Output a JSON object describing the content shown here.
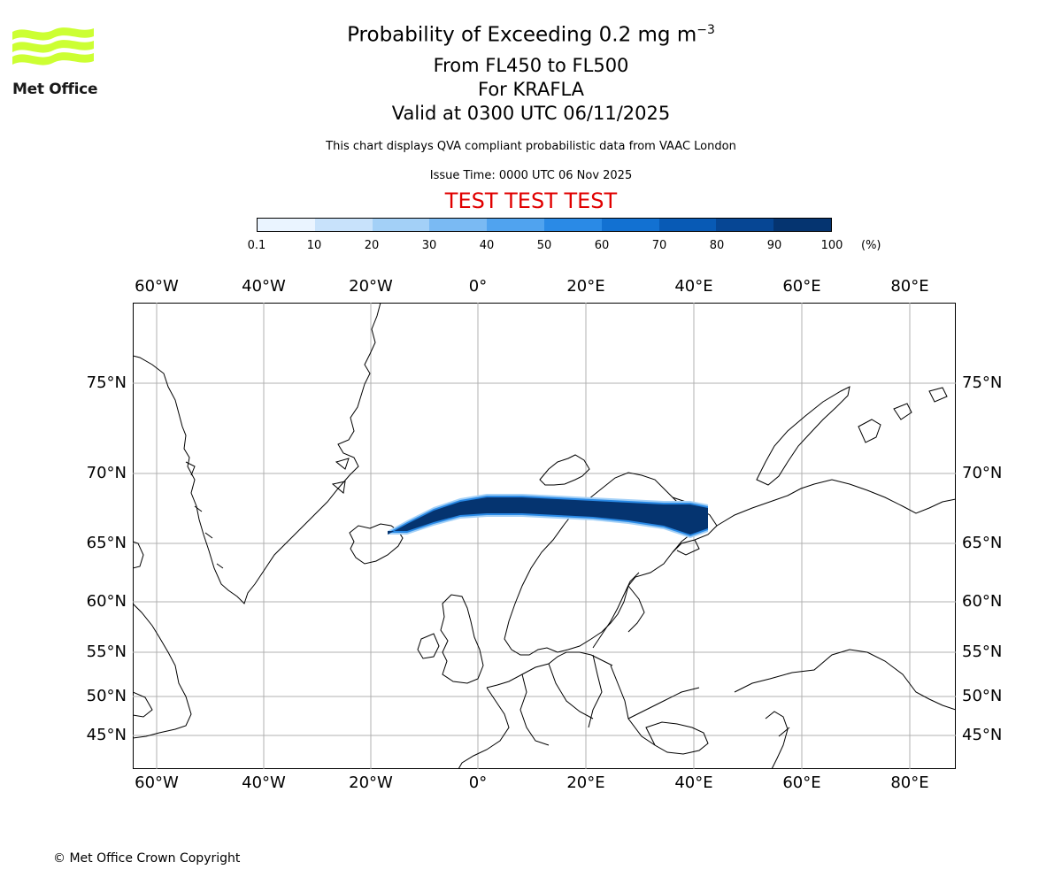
{
  "header": {
    "title_main": "Probability of Exceeding 0.2 mg m",
    "title_exponent": "−3",
    "line2": "From FL450 to FL500",
    "line3": "For KRAFLA",
    "line4": "Valid at 0300 UTC 06/11/2025",
    "disclaimer": "This chart displays QVA compliant probabilistic data from VAAC London",
    "issue_time": "Issue Time: 0000 UTC 06 Nov 2025",
    "test_banner": "TEST TEST TEST",
    "test_color": "#e00000"
  },
  "logo": {
    "text": "Met Office",
    "icon": "met-office-waves-logo",
    "color": "#ccff33"
  },
  "colorbar": {
    "ticks": [
      "0.1",
      "10",
      "20",
      "30",
      "40",
      "50",
      "60",
      "70",
      "80",
      "90",
      "100"
    ],
    "unit": "(%)",
    "colors": [
      "#eaf4ff",
      "#c8e2fb",
      "#a3d0f7",
      "#7abaf3",
      "#50a3ef",
      "#2a8ae6",
      "#1271d2",
      "#085ab5",
      "#064694",
      "#053470"
    ]
  },
  "map": {
    "top_lon_labels": [
      "60°W",
      "40°W",
      "20°W",
      "0°",
      "20°E",
      "40°E",
      "60°E",
      "80°E"
    ],
    "bottom_lon_labels": [
      "60°W",
      "40°W",
      "20°W",
      "0°",
      "20°E",
      "40°E",
      "60°E",
      "80°E"
    ],
    "left_lat_labels": [
      "75°N",
      "70°N",
      "65°N",
      "60°N",
      "55°N",
      "50°N",
      "45°N"
    ],
    "right_lat_labels": [
      "75°N",
      "70°N",
      "65°N",
      "60°N",
      "55°N",
      "50°N",
      "45°N"
    ],
    "volcano": "KRAFLA",
    "plume_color": "#053470"
  },
  "footer": {
    "copyright": "© Met Office Crown Copyright"
  }
}
